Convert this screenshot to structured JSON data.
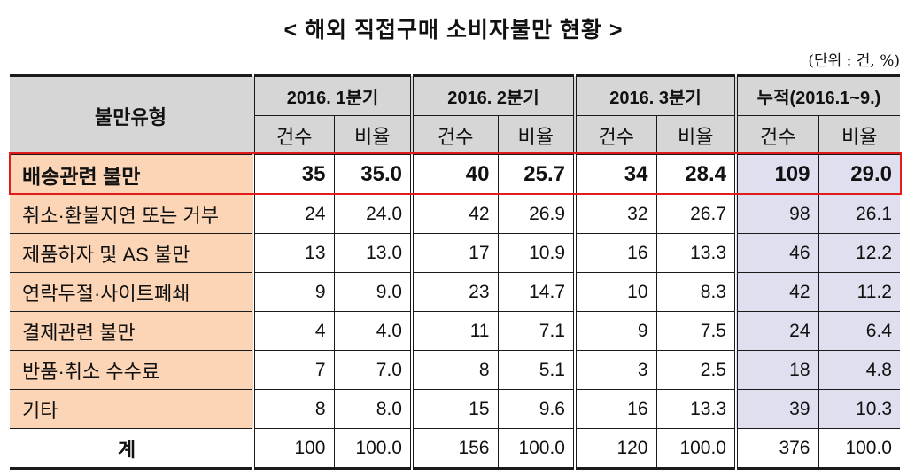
{
  "title": "< 해외 직접구매 소비자불만 현황 >",
  "unit": "(단위 : 건, %)",
  "table": {
    "header": {
      "type_label": "불만유형",
      "groups": [
        "2016. 1분기",
        "2016. 2분기",
        "2016. 3분기",
        "누적(2016.1~9.)"
      ],
      "sub": [
        "건수",
        "비율"
      ]
    },
    "rows": [
      {
        "label": "배송관련 불만",
        "values": [
          "35",
          "35.0",
          "40",
          "25.7",
          "34",
          "28.4",
          "109",
          "29.0"
        ],
        "highlight": true
      },
      {
        "label": "취소·환불지연 또는 거부",
        "values": [
          "24",
          "24.0",
          "42",
          "26.9",
          "32",
          "26.7",
          "98",
          "26.1"
        ]
      },
      {
        "label": "제품하자 및 AS 불만",
        "values": [
          "13",
          "13.0",
          "17",
          "10.9",
          "16",
          "13.3",
          "46",
          "12.2"
        ]
      },
      {
        "label": "연락두절·사이트폐쇄",
        "values": [
          "9",
          "9.0",
          "23",
          "14.7",
          "10",
          "8.3",
          "42",
          "11.2"
        ]
      },
      {
        "label": "결제관련 불만",
        "values": [
          "4",
          "4.0",
          "11",
          "7.1",
          "9",
          "7.5",
          "24",
          "6.4"
        ]
      },
      {
        "label": "반품·취소 수수료",
        "values": [
          "7",
          "7.0",
          "8",
          "5.1",
          "3",
          "2.5",
          "18",
          "4.8"
        ]
      },
      {
        "label": "기타",
        "values": [
          "8",
          "8.0",
          "15",
          "9.6",
          "16",
          "13.3",
          "39",
          "10.3"
        ]
      },
      {
        "label": "계",
        "values": [
          "100",
          "100.0",
          "156",
          "100.0",
          "120",
          "100.0",
          "376",
          "100.0"
        ]
      }
    ]
  },
  "colors": {
    "header_bg": "#d6d6d6",
    "label_bg": "#fbd5b5",
    "cumulative_bg": "#dfdff0",
    "highlight_border": "#e11b1b"
  }
}
